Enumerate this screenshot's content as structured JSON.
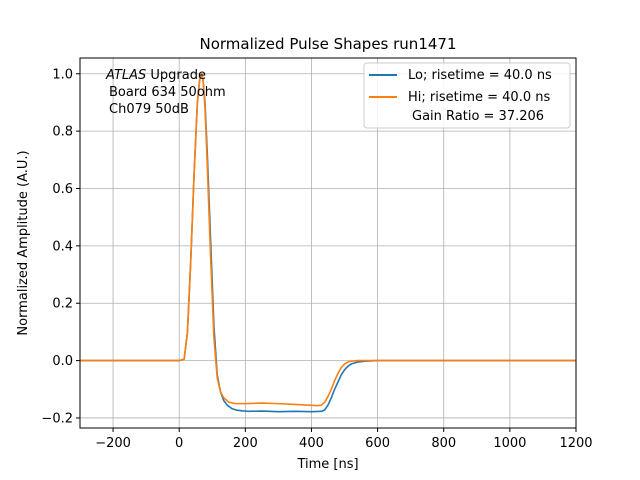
{
  "chart_data": {
    "type": "line",
    "title": "Normalized Pulse Shapes run1471",
    "xlabel": "Time [ns]",
    "ylabel": "Normalized Amplitude (A.U.)",
    "xlim": [
      -300,
      1200
    ],
    "ylim": [
      -0.235,
      1.055
    ],
    "xticks": [
      -200,
      0,
      200,
      400,
      600,
      800,
      1000,
      1200
    ],
    "xtick_labels": [
      "−200",
      "0",
      "200",
      "400",
      "600",
      "800",
      "1000",
      "1200"
    ],
    "yticks": [
      -0.2,
      0.0,
      0.2,
      0.4,
      0.6,
      0.8,
      1.0
    ],
    "ytick_labels": [
      "−0.2",
      "0.0",
      "0.2",
      "0.4",
      "0.6",
      "0.8",
      "1.0"
    ],
    "grid": true,
    "legend_position": "top-right",
    "annotation": {
      "lines": [
        {
          "italic": "ATLAS",
          "rest": " Upgrade"
        },
        {
          "italic": "",
          "rest": "Board 634 50ohm"
        },
        {
          "italic": "",
          "rest": "Ch079 50dB"
        }
      ]
    },
    "series": [
      {
        "name": "Lo; risetime = 40.0 ns",
        "color": "#1f77b4",
        "x": [
          -300,
          -100,
          0,
          15,
          25,
          35,
          45,
          55,
          62,
          68,
          72,
          78,
          85,
          95,
          105,
          115,
          125,
          135,
          145,
          160,
          175,
          190,
          210,
          250,
          300,
          350,
          400,
          430,
          440,
          450,
          460,
          470,
          480,
          490,
          500,
          510,
          520,
          540,
          560,
          600,
          700,
          800,
          1000,
          1200
        ],
        "y": [
          0.0,
          0.0,
          0.0,
          0.005,
          0.1,
          0.35,
          0.65,
          0.9,
          0.98,
          1.0,
          0.98,
          0.9,
          0.72,
          0.42,
          0.12,
          -0.05,
          -0.11,
          -0.14,
          -0.155,
          -0.168,
          -0.173,
          -0.175,
          -0.177,
          -0.176,
          -0.178,
          -0.177,
          -0.178,
          -0.177,
          -0.172,
          -0.155,
          -0.13,
          -0.1,
          -0.075,
          -0.05,
          -0.032,
          -0.02,
          -0.012,
          -0.005,
          -0.002,
          0.0,
          0.0,
          0.0,
          0.0,
          0.0
        ]
      },
      {
        "name": "Hi; risetime = 40.0 ns",
        "name_line2": "Gain Ratio = 37.206",
        "color": "#ff7f0e",
        "x": [
          -300,
          -100,
          0,
          15,
          25,
          35,
          45,
          55,
          62,
          68,
          72,
          78,
          85,
          95,
          105,
          115,
          125,
          135,
          150,
          170,
          200,
          250,
          300,
          350,
          400,
          420,
          430,
          440,
          450,
          460,
          470,
          480,
          490,
          500,
          510,
          520,
          540,
          600,
          700,
          800,
          1000,
          1200
        ],
        "y": [
          0.0,
          0.0,
          0.0,
          0.005,
          0.1,
          0.35,
          0.65,
          0.9,
          0.98,
          1.0,
          0.98,
          0.88,
          0.68,
          0.36,
          0.08,
          -0.06,
          -0.11,
          -0.13,
          -0.145,
          -0.15,
          -0.15,
          -0.148,
          -0.15,
          -0.153,
          -0.156,
          -0.157,
          -0.155,
          -0.145,
          -0.125,
          -0.1,
          -0.07,
          -0.045,
          -0.025,
          -0.012,
          -0.005,
          -0.002,
          0.0,
          0.0,
          0.0,
          0.0,
          0.0,
          0.0
        ]
      }
    ]
  }
}
